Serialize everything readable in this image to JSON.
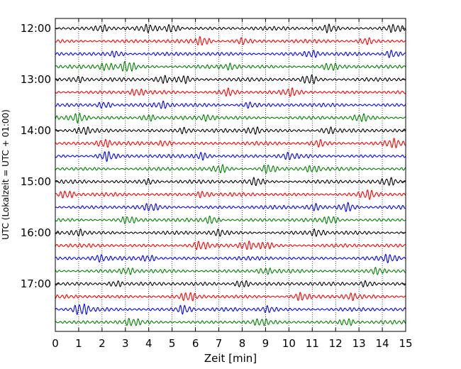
{
  "chart_data": {
    "type": "line",
    "title": "",
    "xlabel": "Zeit  [min]",
    "ylabel": "UTC (Lokalzeit = UTC + 01:00)",
    "xlim": [
      0,
      15
    ],
    "x_ticks": [
      0,
      1,
      2,
      3,
      4,
      5,
      6,
      7,
      8,
      9,
      10,
      11,
      12,
      13,
      14,
      15
    ],
    "y_tick_labels": [
      "12:00",
      "13:00",
      "14:00",
      "15:00",
      "16:00",
      "17:00"
    ],
    "grid": "vertical-dotted",
    "legend": "none",
    "trace_colors": [
      "#000000",
      "#ff0000",
      "#0000ff",
      "#008000"
    ],
    "traces": [
      {
        "start": "12:00",
        "bursts": [
          [
            2.0,
            0.8
          ],
          [
            4.0,
            0.8
          ],
          [
            5.0,
            1.0
          ],
          [
            11.7,
            1.0
          ],
          [
            14.5,
            0.8
          ]
        ]
      },
      {
        "start": "12:15",
        "bursts": [
          [
            6.3,
            1.1
          ],
          [
            8.0,
            0.7
          ],
          [
            13.3,
            0.8
          ]
        ]
      },
      {
        "start": "12:30",
        "bursts": [
          [
            2.6,
            0.7
          ],
          [
            11.0,
            0.8
          ],
          [
            14.4,
            1.0
          ]
        ]
      },
      {
        "start": "12:45",
        "bursts": [
          [
            2.2,
            1.0
          ],
          [
            3.1,
            1.5
          ],
          [
            7.5,
            0.7
          ],
          [
            11.8,
            0.8
          ]
        ]
      },
      {
        "start": "13:00",
        "bursts": [
          [
            1.0,
            0.7
          ],
          [
            4.6,
            1.0
          ],
          [
            5.5,
            0.9
          ],
          [
            10.9,
            1.2
          ]
        ]
      },
      {
        "start": "13:15",
        "bursts": [
          [
            3.5,
            0.8
          ],
          [
            7.4,
            0.9
          ],
          [
            10.1,
            0.8
          ]
        ]
      },
      {
        "start": "13:30",
        "bursts": [
          [
            2.1,
            0.9
          ],
          [
            4.6,
            0.8
          ],
          [
            8.3,
            0.7
          ]
        ]
      },
      {
        "start": "13:45",
        "bursts": [
          [
            1.0,
            1.2
          ],
          [
            4.0,
            0.9
          ],
          [
            6.5,
            0.7
          ],
          [
            13.1,
            0.8
          ]
        ]
      },
      {
        "start": "14:00",
        "bursts": [
          [
            1.2,
            0.8
          ],
          [
            5.5,
            0.8
          ],
          [
            8.5,
            0.9
          ],
          [
            11.7,
            0.8
          ]
        ]
      },
      {
        "start": "14:15",
        "bursts": [
          [
            2.1,
            1.0
          ],
          [
            4.7,
            0.7
          ],
          [
            11.3,
            0.8
          ],
          [
            14.5,
            1.0
          ]
        ]
      },
      {
        "start": "14:30",
        "bursts": [
          [
            2.2,
            1.2
          ],
          [
            6.3,
            1.0
          ],
          [
            10.0,
            0.7
          ]
        ]
      },
      {
        "start": "14:45",
        "bursts": [
          [
            7.1,
            0.9
          ],
          [
            9.1,
            1.1
          ],
          [
            11.0,
            0.8
          ]
        ]
      },
      {
        "start": "15:00",
        "bursts": [
          [
            4.0,
            0.7
          ],
          [
            8.6,
            0.9
          ],
          [
            14.3,
            0.9
          ]
        ]
      },
      {
        "start": "15:15",
        "bursts": [
          [
            0.5,
            1.0
          ],
          [
            6.3,
            0.8
          ],
          [
            13.4,
            1.0
          ]
        ]
      },
      {
        "start": "15:30",
        "bursts": [
          [
            4.1,
            0.8
          ],
          [
            11.1,
            0.9
          ],
          [
            12.5,
            1.1
          ]
        ]
      },
      {
        "start": "15:45",
        "bursts": [
          [
            3.1,
            0.8
          ],
          [
            6.7,
            1.0
          ],
          [
            11.8,
            0.9
          ]
        ]
      },
      {
        "start": "16:00",
        "bursts": [
          [
            1.0,
            0.8
          ],
          [
            7.0,
            0.7
          ],
          [
            11.2,
            0.8
          ]
        ]
      },
      {
        "start": "16:15",
        "bursts": [
          [
            6.2,
            1.0
          ],
          [
            8.2,
            1.1
          ],
          [
            9.0,
            0.8
          ]
        ]
      },
      {
        "start": "16:30",
        "bursts": [
          [
            1.9,
            0.8
          ],
          [
            4.0,
            0.8
          ],
          [
            14.3,
            0.9
          ]
        ]
      },
      {
        "start": "16:45",
        "bursts": [
          [
            3.1,
            0.8
          ],
          [
            9.0,
            0.7
          ],
          [
            13.8,
            0.9
          ]
        ]
      },
      {
        "start": "17:00",
        "bursts": [
          [
            2.6,
            0.8
          ],
          [
            8.0,
            1.0
          ],
          [
            13.3,
            0.8
          ]
        ]
      },
      {
        "start": "17:15",
        "bursts": [
          [
            5.7,
            1.0
          ],
          [
            10.5,
            0.9
          ],
          [
            12.7,
            0.8
          ]
        ]
      },
      {
        "start": "17:30",
        "bursts": [
          [
            1.1,
            1.6
          ],
          [
            5.5,
            1.2
          ],
          [
            9.1,
            0.8
          ]
        ]
      },
      {
        "start": "17:45",
        "bursts": [
          [
            3.3,
            0.8
          ],
          [
            8.8,
            0.7
          ],
          [
            12.5,
            0.9
          ]
        ]
      }
    ]
  }
}
